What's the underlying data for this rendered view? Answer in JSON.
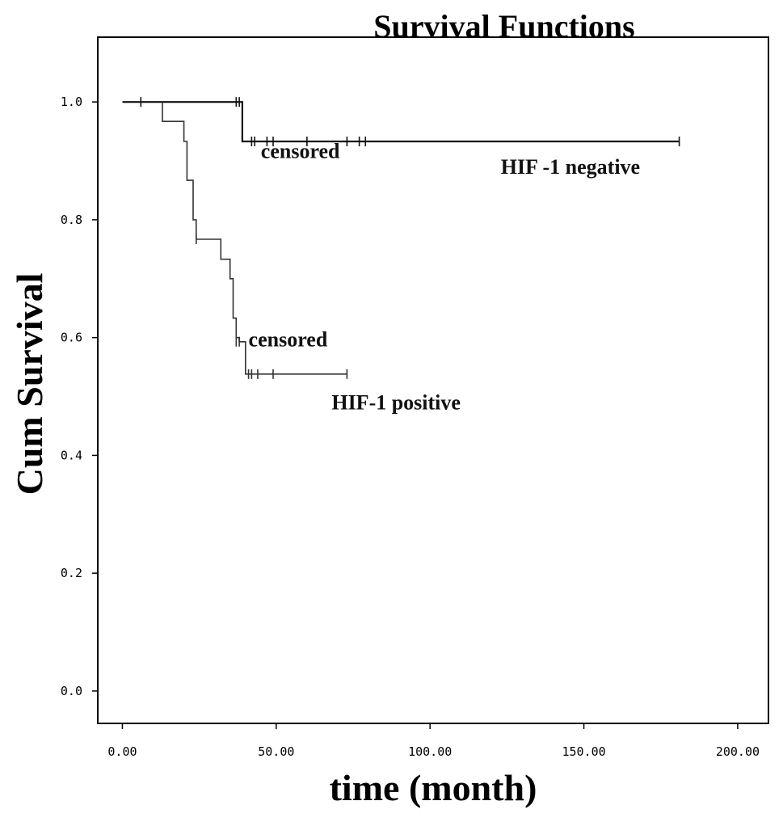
{
  "chart_data": {
    "type": "line",
    "subtype": "kaplan-meier step",
    "title": "Survival Functions",
    "xlabel": "time (month)",
    "ylabel": "Cum Survival",
    "xlim": [
      -8,
      210
    ],
    "ylim": [
      -0.055,
      1.11
    ],
    "x_ticks": [
      0,
      50,
      100,
      150,
      200
    ],
    "x_tick_labels": [
      "0.00",
      "50.00",
      "100.00",
      "150.00",
      "200.00"
    ],
    "y_ticks": [
      0,
      0.2,
      0.4,
      0.6,
      0.8,
      1.0
    ],
    "y_tick_labels": [
      "0.0",
      "0.2",
      "0.4",
      "0.6",
      "0.8",
      "1.0"
    ],
    "grid": false,
    "legend": "none",
    "series": [
      {
        "label": "HIF -1 negative",
        "color": "#111111",
        "steps": [
          {
            "x": 0,
            "y": 1.0
          },
          {
            "x": 39,
            "y": 1.0
          },
          {
            "x": 39,
            "y": 0.933
          },
          {
            "x": 181,
            "y": 0.933
          }
        ],
        "censored": [
          {
            "x": 6,
            "y": 1.0
          },
          {
            "x": 37,
            "y": 1.0
          },
          {
            "x": 38,
            "y": 1.0
          },
          {
            "x": 42,
            "y": 0.933
          },
          {
            "x": 43,
            "y": 0.933
          },
          {
            "x": 47,
            "y": 0.933
          },
          {
            "x": 49,
            "y": 0.933
          },
          {
            "x": 60,
            "y": 0.933
          },
          {
            "x": 73,
            "y": 0.933
          },
          {
            "x": 77,
            "y": 0.933
          },
          {
            "x": 79,
            "y": 0.933
          },
          {
            "x": 181,
            "y": 0.933
          }
        ]
      },
      {
        "label": "HIF-1 positive",
        "color": "#333333",
        "steps": [
          {
            "x": 13,
            "y": 1.0
          },
          {
            "x": 13,
            "y": 0.967
          },
          {
            "x": 20,
            "y": 0.967
          },
          {
            "x": 20,
            "y": 0.933
          },
          {
            "x": 21,
            "y": 0.933
          },
          {
            "x": 21,
            "y": 0.867
          },
          {
            "x": 23,
            "y": 0.867
          },
          {
            "x": 23,
            "y": 0.8
          },
          {
            "x": 24,
            "y": 0.8
          },
          {
            "x": 24,
            "y": 0.767
          },
          {
            "x": 32,
            "y": 0.767
          },
          {
            "x": 32,
            "y": 0.733
          },
          {
            "x": 35,
            "y": 0.733
          },
          {
            "x": 35,
            "y": 0.7
          },
          {
            "x": 36,
            "y": 0.7
          },
          {
            "x": 36,
            "y": 0.633
          },
          {
            "x": 37,
            "y": 0.633
          },
          {
            "x": 37,
            "y": 0.6
          },
          {
            "x": 38,
            "y": 0.6
          },
          {
            "x": 38,
            "y": 0.593
          },
          {
            "x": 40,
            "y": 0.593
          },
          {
            "x": 40,
            "y": 0.538
          },
          {
            "x": 73,
            "y": 0.538
          }
        ],
        "censored": [
          {
            "x": 24,
            "y": 0.767
          },
          {
            "x": 37,
            "y": 0.593
          },
          {
            "x": 38,
            "y": 0.593
          },
          {
            "x": 41,
            "y": 0.538
          },
          {
            "x": 42,
            "y": 0.538
          },
          {
            "x": 44,
            "y": 0.538
          },
          {
            "x": 49,
            "y": 0.538
          },
          {
            "x": 73,
            "y": 0.538
          }
        ]
      }
    ],
    "annotations": [
      {
        "text": "censored",
        "x": 45,
        "y": 0.905
      },
      {
        "text": "HIF -1 negative",
        "x": 123,
        "y": 0.878
      },
      {
        "text": "censored",
        "x": 41,
        "y": 0.585
      },
      {
        "text": "HIF-1 positive",
        "x": 68,
        "y": 0.478
      }
    ]
  }
}
